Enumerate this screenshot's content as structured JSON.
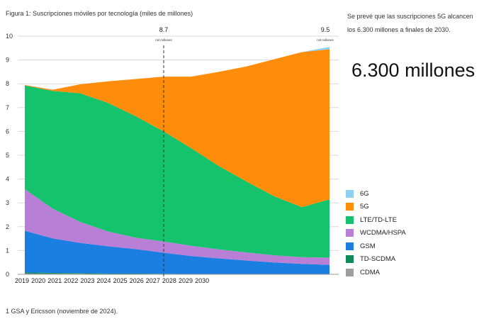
{
  "figure_title": "Figura 1: Suscripciones móviles por tecnología (miles de millones)",
  "note_lines": [
    "Se prevé que las suscripciones 5G alcancen",
    "los 6.300 millones a finales de 2030."
  ],
  "big_number": "6.300 millones",
  "footnote": "1 GSA y Ericsson (noviembre de 2024).",
  "chart_data": {
    "type": "area",
    "title": "Suscripciones móviles por tecnología (miles de millones)",
    "x": [
      2019,
      2020,
      2021,
      2022,
      2023,
      2024,
      2025,
      2026,
      2027,
      2028,
      2029,
      2030
    ],
    "x_tick_labels": [
      "2019",
      "2020",
      "2021",
      "2022",
      "2023",
      "2024",
      "2025",
      "2026",
      "2027",
      "2028",
      "2029",
      "2030"
    ],
    "ylim": [
      0,
      10
    ],
    "y_ticks": [
      "0",
      "1",
      "2",
      "3",
      "4",
      "5",
      "6",
      "7",
      "8",
      "9",
      "10"
    ],
    "grid": true,
    "legend_position": "right",
    "stacked": true,
    "series": [
      {
        "name": "CDMA",
        "color": "#9e9e9e",
        "values": [
          0.03,
          0.02,
          0.02,
          0.01,
          0.01,
          0.01,
          0.0,
          0.0,
          0.0,
          0.0,
          0.0,
          0.0
        ]
      },
      {
        "name": "TD-SCDMA",
        "color": "#0f8a5a",
        "values": [
          0.05,
          0.04,
          0.03,
          0.02,
          0.02,
          0.01,
          0.01,
          0.01,
          0.0,
          0.0,
          0.0,
          0.0
        ]
      },
      {
        "name": "GSM",
        "color": "#1a7fe0",
        "values": [
          1.75,
          1.45,
          1.27,
          1.15,
          1.03,
          0.89,
          0.76,
          0.66,
          0.58,
          0.5,
          0.44,
          0.4
        ]
      },
      {
        "name": "WCDMA/HSPA",
        "color": "#b97fd6",
        "values": [
          1.75,
          1.25,
          0.88,
          0.62,
          0.48,
          0.47,
          0.43,
          0.38,
          0.34,
          0.3,
          0.28,
          0.3
        ]
      },
      {
        "name": "LTE/TD-LTE",
        "color": "#14c36b",
        "values": [
          4.35,
          4.94,
          5.4,
          5.4,
          5.1,
          4.63,
          4.1,
          3.5,
          2.98,
          2.48,
          2.1,
          2.45
        ]
      },
      {
        "name": "5G",
        "color": "#ff8c0a",
        "values": [
          0.02,
          0.05,
          0.38,
          0.9,
          1.56,
          2.29,
          3.0,
          3.95,
          4.83,
          5.75,
          6.51,
          6.3
        ]
      },
      {
        "name": "6G",
        "color": "#8fd0f5",
        "values": [
          0.0,
          0.0,
          0.0,
          0.0,
          0.0,
          0.0,
          0.0,
          0.0,
          0.0,
          0.0,
          0.0,
          0.1
        ]
      }
    ],
    "annotations": [
      {
        "x": 2027,
        "value": "8.7",
        "unit": "mil millones",
        "dashed_line": true
      },
      {
        "x": 2030,
        "value": "9.5",
        "unit": "mil millones",
        "dashed_line": false
      }
    ]
  }
}
